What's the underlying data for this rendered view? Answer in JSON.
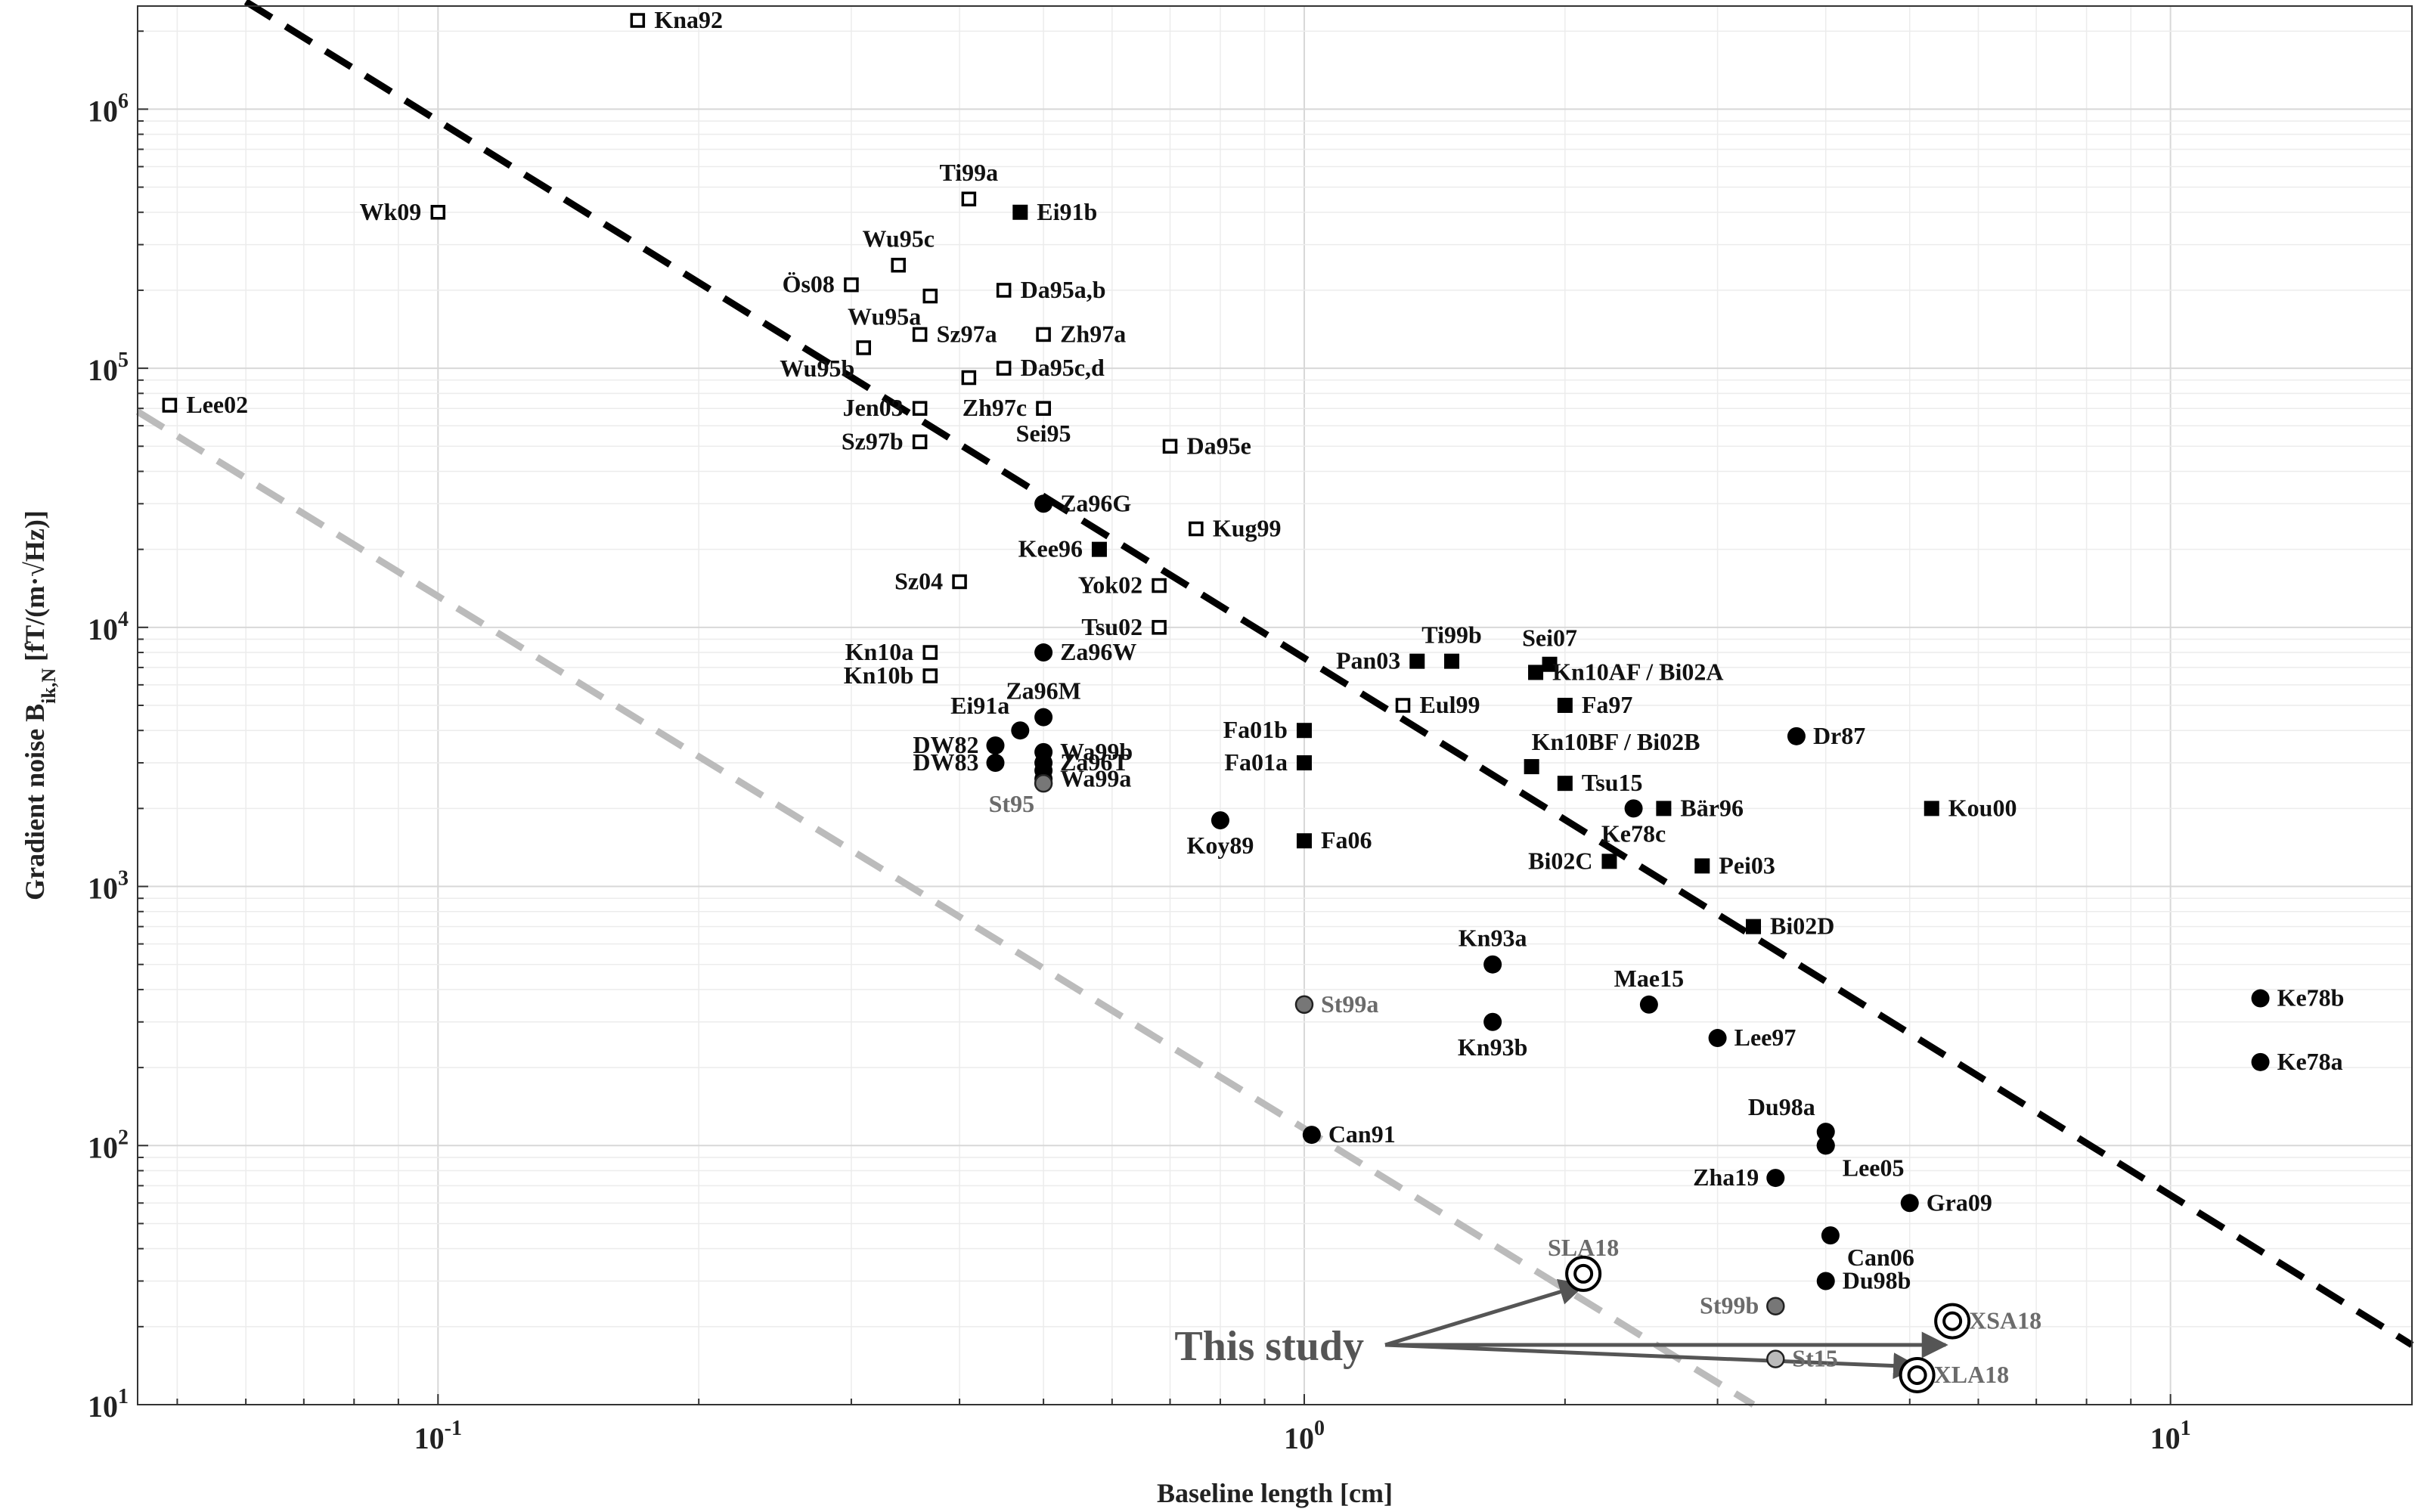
{
  "chart_data": {
    "type": "scatter",
    "xscale": "log",
    "yscale": "log",
    "xlim": [
      0.045,
      19
    ],
    "ylim": [
      10,
      2500000
    ],
    "xlabel": "Baseline length [cm]",
    "ylabel": "Gradient noise B",
    "ylabel_sub": "ik,N",
    "ylabel_units": " [fT/(m·√Hz)]",
    "grid": true,
    "x_ticks": [
      {
        "value": 0.1,
        "base": "10",
        "exp": "-1"
      },
      {
        "value": 1,
        "base": "10",
        "exp": "0"
      },
      {
        "value": 10,
        "base": "10",
        "exp": "1"
      }
    ],
    "y_ticks": [
      {
        "value": 10,
        "base": "10",
        "exp": "1"
      },
      {
        "value": 100,
        "base": "10",
        "exp": "2"
      },
      {
        "value": 1000,
        "base": "10",
        "exp": "3"
      },
      {
        "value": 10000,
        "base": "10",
        "exp": "4"
      },
      {
        "value": 100000,
        "base": "10",
        "exp": "5"
      },
      {
        "value": 1000000,
        "base": "10",
        "exp": "6"
      }
    ],
    "trend_lines": [
      {
        "name": "upper-trend-line",
        "color": "#000000",
        "style": "dashed",
        "x": [
          0.06,
          19
        ],
        "y": [
          2600000,
          17
        ]
      },
      {
        "name": "lower-trend-line",
        "color": "#bbbbbb",
        "style": "dashed",
        "x": [
          0.045,
          3.3
        ],
        "y": [
          68000,
          10
        ]
      }
    ],
    "annotation": {
      "text": "This study",
      "from": [
        1.24,
        17
      ],
      "to": [
        [
          2.1,
          29
        ],
        [
          5.5,
          17
        ],
        [
          5.1,
          14
        ]
      ]
    },
    "series": [
      {
        "name": "open-square",
        "marker": "open-square",
        "color": "#000000",
        "points": [
          {
            "label": "Kna92",
            "x": 0.17,
            "y": 2200000,
            "pos": "right"
          },
          {
            "label": "Wk09",
            "x": 0.1,
            "y": 400000,
            "pos": "left"
          },
          {
            "label": "Ti99a",
            "x": 0.41,
            "y": 450000,
            "pos": "above"
          },
          {
            "label": "Wu95c",
            "x": 0.34,
            "y": 250000,
            "pos": "above"
          },
          {
            "label": "Ös08",
            "x": 0.3,
            "y": 210000,
            "pos": "left"
          },
          {
            "label": "Wu95a",
            "x": 0.37,
            "y": 190000,
            "pos": "below-left"
          },
          {
            "label": "Da95a,b",
            "x": 0.45,
            "y": 200000,
            "pos": "right"
          },
          {
            "label": "Sz97a",
            "x": 0.36,
            "y": 135000,
            "pos": "right"
          },
          {
            "label": "Zh97a",
            "x": 0.5,
            "y": 135000,
            "pos": "right"
          },
          {
            "label": "Wu95b",
            "x": 0.31,
            "y": 120000,
            "pos": "below-left"
          },
          {
            "label": "Da95c,d",
            "x": 0.45,
            "y": 100000,
            "pos": "right"
          },
          {
            "label": "",
            "x": 0.41,
            "y": 92000,
            "pos": "none"
          },
          {
            "label": "Lee02",
            "x": 0.049,
            "y": 72000,
            "pos": "right"
          },
          {
            "label": "Jen03",
            "x": 0.36,
            "y": 70000,
            "pos": "left"
          },
          {
            "label": "Zh97c",
            "x": 0.5,
            "y": 70000,
            "pos": "left"
          },
          {
            "label": "Sei95",
            "x": 0.5,
            "y": 70000,
            "pos": "below"
          },
          {
            "label": "Sz97b",
            "x": 0.36,
            "y": 52000,
            "pos": "left"
          },
          {
            "label": "Da95e",
            "x": 0.7,
            "y": 50000,
            "pos": "right"
          },
          {
            "label": "Kug99",
            "x": 0.75,
            "y": 24000,
            "pos": "right"
          },
          {
            "label": "Sz04",
            "x": 0.4,
            "y": 15000,
            "pos": "left"
          },
          {
            "label": "Yok02",
            "x": 0.68,
            "y": 14500,
            "pos": "left"
          },
          {
            "label": "Tsu02",
            "x": 0.68,
            "y": 10000,
            "pos": "left"
          },
          {
            "label": "Kn10a",
            "x": 0.37,
            "y": 8000,
            "pos": "left"
          },
          {
            "label": "Kn10b",
            "x": 0.37,
            "y": 6500,
            "pos": "left"
          },
          {
            "label": "Eul99",
            "x": 1.3,
            "y": 5000,
            "pos": "right"
          }
        ]
      },
      {
        "name": "filled-square",
        "marker": "filled-square",
        "color": "#000000",
        "points": [
          {
            "label": "Ei91b",
            "x": 0.47,
            "y": 400000,
            "pos": "right"
          },
          {
            "label": "Kee96",
            "x": 0.58,
            "y": 20000,
            "pos": "left"
          },
          {
            "label": "Pan03",
            "x": 1.35,
            "y": 7400,
            "pos": "left"
          },
          {
            "label": "Ti99b",
            "x": 1.48,
            "y": 7400,
            "pos": "above"
          },
          {
            "label": "Sei07",
            "x": 1.92,
            "y": 7200,
            "pos": "above"
          },
          {
            "label": "Kn10AF / Bi02A",
            "x": 1.85,
            "y": 6700,
            "pos": "right"
          },
          {
            "label": "Fa97",
            "x": 2.0,
            "y": 5000,
            "pos": "right"
          },
          {
            "label": "Fa01b",
            "x": 1.0,
            "y": 4000,
            "pos": "left"
          },
          {
            "label": "Fa01a",
            "x": 1.0,
            "y": 3000,
            "pos": "left"
          },
          {
            "label": "Kn10BF / Bi02B",
            "x": 1.83,
            "y": 2900,
            "pos": "above-right"
          },
          {
            "label": "Tsu15",
            "x": 2.0,
            "y": 2500,
            "pos": "right"
          },
          {
            "label": "Bär96",
            "x": 2.6,
            "y": 2000,
            "pos": "right"
          },
          {
            "label": "Kou00",
            "x": 5.3,
            "y": 2000,
            "pos": "right"
          },
          {
            "label": "Fa06",
            "x": 1.0,
            "y": 1500,
            "pos": "right"
          },
          {
            "label": "Bi02C",
            "x": 2.25,
            "y": 1250,
            "pos": "left"
          },
          {
            "label": "Pei03",
            "x": 2.88,
            "y": 1200,
            "pos": "right"
          },
          {
            "label": "Bi02D",
            "x": 3.3,
            "y": 700,
            "pos": "right"
          }
        ]
      },
      {
        "name": "filled-circle",
        "marker": "filled-circle",
        "color": "#000000",
        "points": [
          {
            "label": "Za96G",
            "x": 0.5,
            "y": 30000,
            "pos": "right"
          },
          {
            "label": "Za96W",
            "x": 0.5,
            "y": 8000,
            "pos": "right"
          },
          {
            "label": "Za96M",
            "x": 0.5,
            "y": 4500,
            "pos": "above"
          },
          {
            "label": "Ei91a",
            "x": 0.47,
            "y": 4000,
            "pos": "above-left"
          },
          {
            "label": "DW82",
            "x": 0.44,
            "y": 3500,
            "pos": "left"
          },
          {
            "label": "Wa99b",
            "x": 0.5,
            "y": 3300,
            "pos": "right"
          },
          {
            "label": "DW83",
            "x": 0.44,
            "y": 3000,
            "pos": "left"
          },
          {
            "label": "Za96T",
            "x": 0.5,
            "y": 3000,
            "pos": "right"
          },
          {
            "label": "",
            "x": 0.5,
            "y": 2800,
            "pos": "none"
          },
          {
            "label": "Wa99a",
            "x": 0.5,
            "y": 2600,
            "pos": "right"
          },
          {
            "label": "Koy89",
            "x": 0.8,
            "y": 1800,
            "pos": "below"
          },
          {
            "label": "Dr87",
            "x": 3.7,
            "y": 3800,
            "pos": "right"
          },
          {
            "label": "Ke78c",
            "x": 2.4,
            "y": 2000,
            "pos": "below"
          },
          {
            "label": "Kn93a",
            "x": 1.65,
            "y": 500,
            "pos": "above"
          },
          {
            "label": "Kn93b",
            "x": 1.65,
            "y": 300,
            "pos": "below"
          },
          {
            "label": "Mae15",
            "x": 2.5,
            "y": 350,
            "pos": "above"
          },
          {
            "label": "Lee97",
            "x": 3.0,
            "y": 260,
            "pos": "right"
          },
          {
            "label": "Ke78b",
            "x": 12.7,
            "y": 370,
            "pos": "right"
          },
          {
            "label": "Ke78a",
            "x": 12.7,
            "y": 210,
            "pos": "right"
          },
          {
            "label": "Can91",
            "x": 1.02,
            "y": 110,
            "pos": "right"
          },
          {
            "label": "Du98a",
            "x": 4.0,
            "y": 113,
            "pos": "above-left"
          },
          {
            "label": "",
            "x": 4.0,
            "y": 100,
            "pos": "none"
          },
          {
            "label": "Lee05",
            "x": 4.0,
            "y": 100,
            "pos": "below-right"
          },
          {
            "label": "Zha19",
            "x": 3.5,
            "y": 75,
            "pos": "left"
          },
          {
            "label": "Gra09",
            "x": 5.0,
            "y": 60,
            "pos": "right"
          },
          {
            "label": "Can06",
            "x": 4.05,
            "y": 45,
            "pos": "below-right"
          },
          {
            "label": "Du98b",
            "x": 4.0,
            "y": 30,
            "pos": "right"
          }
        ]
      },
      {
        "name": "gray-circle",
        "marker": "gray-circle",
        "color": "#777777",
        "points": [
          {
            "label": "St95",
            "x": 0.5,
            "y": 2500,
            "pos": "below-left"
          },
          {
            "label": "St99a",
            "x": 1.0,
            "y": 350,
            "pos": "right"
          },
          {
            "label": "St99b",
            "x": 3.5,
            "y": 24,
            "pos": "left"
          }
        ]
      },
      {
        "name": "light-circle",
        "marker": "light-circle",
        "color": "#bbbbbb",
        "points": [
          {
            "label": "St15",
            "x": 3.5,
            "y": 15,
            "pos": "right"
          }
        ]
      },
      {
        "name": "this-study",
        "marker": "double-circle",
        "color": "#000000",
        "points": [
          {
            "label": "SLA18",
            "x": 2.1,
            "y": 32,
            "pos": "above"
          },
          {
            "label": "XSA18",
            "x": 5.6,
            "y": 21,
            "pos": "right"
          },
          {
            "label": "XLA18",
            "x": 5.1,
            "y": 13,
            "pos": "right"
          }
        ]
      }
    ]
  }
}
